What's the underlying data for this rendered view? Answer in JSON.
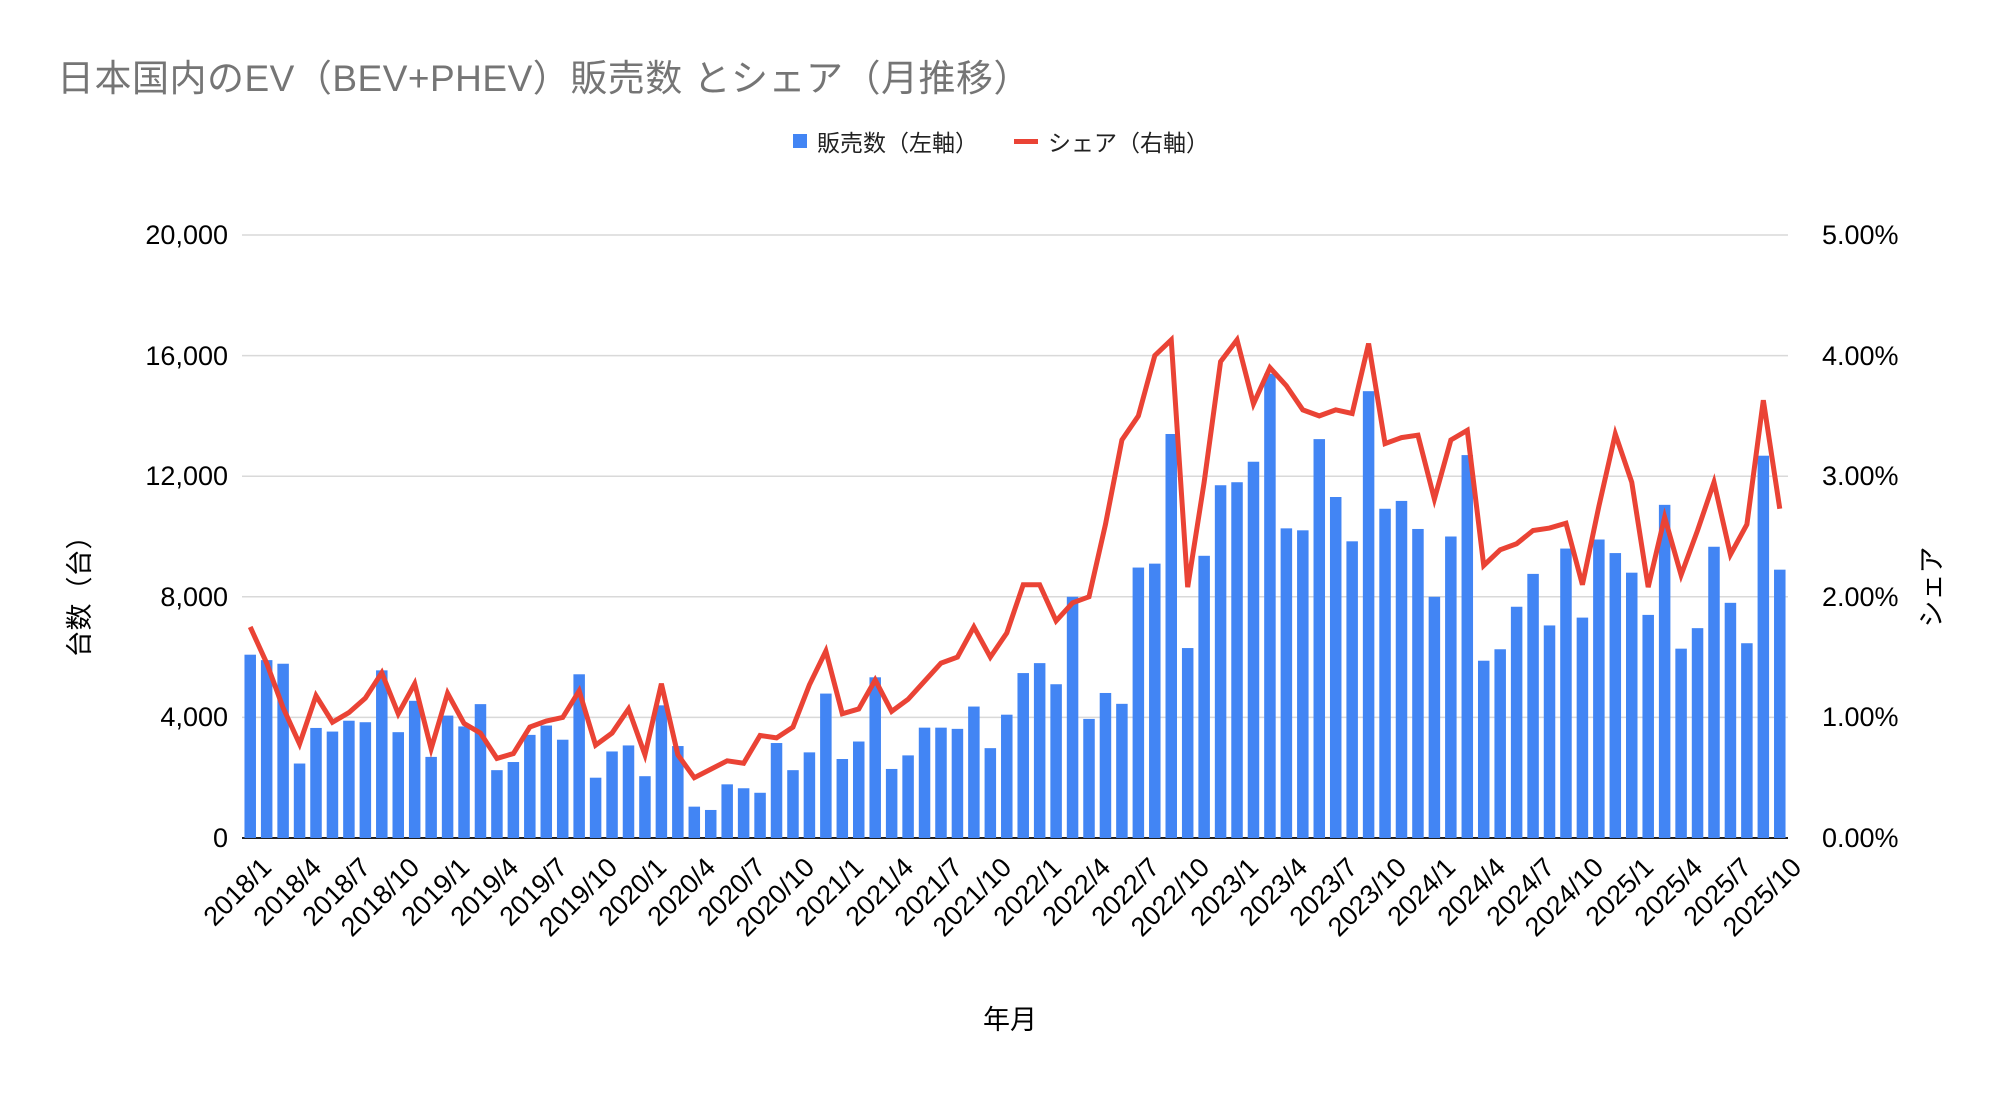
{
  "title": "日本国内のEV（BEV+PHEV）販売数 とシェア（月推移）",
  "legend": {
    "sales_label": "販売数（左軸）",
    "share_label": "シェア（右軸）"
  },
  "axes": {
    "left_label": "台数（台）",
    "right_label": "シェア",
    "x_label": "年月",
    "left_ticks": [
      "0",
      "4,000",
      "8,000",
      "12,000",
      "16,000",
      "20,000"
    ],
    "right_ticks": [
      "0.00%",
      "1.00%",
      "2.00%",
      "3.00%",
      "4.00%",
      "5.00%"
    ]
  },
  "colors": {
    "bar": "#4285F4",
    "line": "#EA4335",
    "title": "#757575",
    "gridline": "#d9d9d9",
    "axisline": "#212121",
    "tick_text": "#000000"
  },
  "chart_data": {
    "type": "combo",
    "title": "日本国内のEV（BEV+PHEV）販売数 とシェア（月推移）",
    "xlabel": "年月",
    "ylabel_left": "台数（台）",
    "ylabel_right": "シェア",
    "ylim_left": [
      0,
      20000
    ],
    "ylim_right": [
      0,
      5
    ],
    "grid": true,
    "legend_position": "top",
    "x_tick_every": 3,
    "categories": [
      "2018/1",
      "2018/2",
      "2018/3",
      "2018/4",
      "2018/5",
      "2018/6",
      "2018/7",
      "2018/8",
      "2018/9",
      "2018/10",
      "2018/11",
      "2018/12",
      "2019/1",
      "2019/2",
      "2019/3",
      "2019/4",
      "2019/5",
      "2019/6",
      "2019/7",
      "2019/8",
      "2019/9",
      "2019/10",
      "2019/11",
      "2019/12",
      "2020/1",
      "2020/2",
      "2020/3",
      "2020/4",
      "2020/5",
      "2020/6",
      "2020/7",
      "2020/8",
      "2020/9",
      "2020/10",
      "2020/11",
      "2020/12",
      "2021/1",
      "2021/2",
      "2021/3",
      "2021/4",
      "2021/5",
      "2021/6",
      "2021/7",
      "2021/8",
      "2021/9",
      "2021/10",
      "2021/11",
      "2021/12",
      "2022/1",
      "2022/2",
      "2022/3",
      "2022/4",
      "2022/5",
      "2022/6",
      "2022/7",
      "2022/8",
      "2022/9",
      "2022/10",
      "2022/11",
      "2022/12",
      "2023/1",
      "2023/2",
      "2023/3",
      "2023/4",
      "2023/5",
      "2023/6",
      "2023/7",
      "2023/8",
      "2023/9",
      "2023/10",
      "2023/11",
      "2023/12",
      "2024/1",
      "2024/2",
      "2024/3",
      "2024/4",
      "2024/5",
      "2024/6",
      "2024/7",
      "2024/8",
      "2024/9",
      "2024/10",
      "2024/11",
      "2024/12",
      "2025/1",
      "2025/2",
      "2025/3",
      "2025/4",
      "2025/5",
      "2025/6",
      "2025/7",
      "2025/8",
      "2025/9",
      "2025/10"
    ],
    "series": [
      {
        "name": "販売数（左軸）",
        "type": "bar",
        "axis": "left",
        "values": [
          6080,
          5900,
          5780,
          2470,
          3650,
          3530,
          3890,
          3840,
          5560,
          3510,
          4550,
          2690,
          4060,
          3700,
          4440,
          2250,
          2520,
          3420,
          3730,
          3260,
          5430,
          2000,
          2870,
          3070,
          2050,
          4400,
          3050,
          1040,
          930,
          1780,
          1650,
          1500,
          3150,
          2250,
          2840,
          4790,
          2620,
          3200,
          5330,
          2290,
          2740,
          3660,
          3660,
          3620,
          4360,
          2980,
          4090,
          5470,
          5800,
          5100,
          8000,
          3950,
          4810,
          4450,
          8970,
          9100,
          13400,
          6300,
          9360,
          11700,
          11800,
          12480,
          15400,
          10270,
          10205,
          13230,
          11310,
          9840,
          14820,
          10920,
          11180,
          10250,
          8000,
          10000,
          12700,
          5880,
          6260,
          7670,
          8760,
          7050,
          9600,
          7310,
          9900,
          9450,
          8800,
          7400,
          11050,
          6280,
          6960,
          9660,
          7800,
          6460,
          12680,
          8900
        ]
      },
      {
        "name": "シェア（右軸）",
        "type": "line",
        "axis": "right",
        "values": [
          1.75,
          1.45,
          1.08,
          0.78,
          1.18,
          0.96,
          1.04,
          1.16,
          1.37,
          1.03,
          1.28,
          0.74,
          1.2,
          0.95,
          0.87,
          0.66,
          0.7,
          0.92,
          0.97,
          1.0,
          1.22,
          0.77,
          0.87,
          1.07,
          0.69,
          1.28,
          0.69,
          0.5,
          0.57,
          0.64,
          0.62,
          0.85,
          0.83,
          0.92,
          1.27,
          1.55,
          1.03,
          1.07,
          1.31,
          1.05,
          1.15,
          1.3,
          1.45,
          1.5,
          1.75,
          1.5,
          1.7,
          2.1,
          2.1,
          1.8,
          1.95,
          2.0,
          2.6,
          3.3,
          3.5,
          4.0,
          4.13,
          2.08,
          2.95,
          3.95,
          4.13,
          3.6,
          3.9,
          3.75,
          3.55,
          3.5,
          3.55,
          3.52,
          4.1,
          3.27,
          3.32,
          3.34,
          2.81,
          3.3,
          3.38,
          2.26,
          2.39,
          2.44,
          2.55,
          2.57,
          2.61,
          2.1,
          2.75,
          3.35,
          2.95,
          2.08,
          2.66,
          2.18,
          2.55,
          2.95,
          2.35,
          2.6,
          3.63,
          2.73
        ]
      }
    ]
  }
}
